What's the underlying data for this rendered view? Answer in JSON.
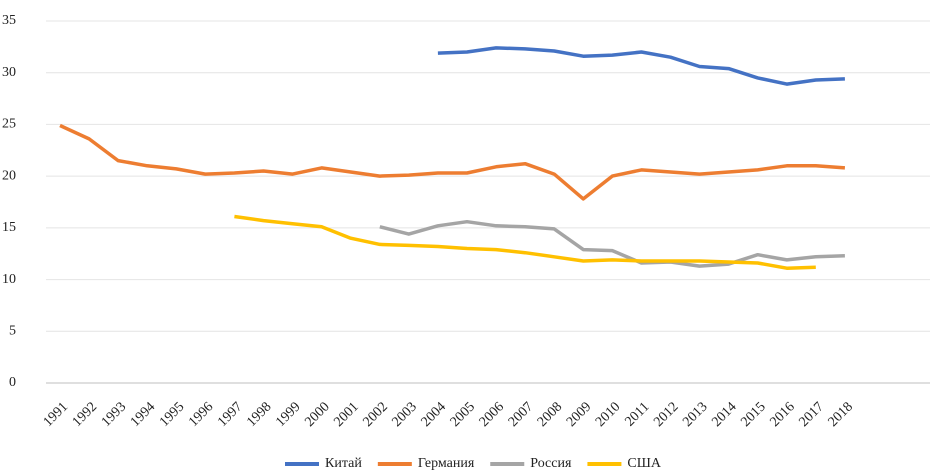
{
  "chart_data": {
    "type": "line",
    "categories": [
      "1991",
      "1992",
      "1993",
      "1994",
      "1995",
      "1996",
      "1997",
      "1998",
      "1999",
      "2000",
      "2001",
      "2002",
      "2003",
      "2004",
      "2005",
      "2006",
      "2007",
      "2008",
      "2009",
      "2010",
      "2011",
      "2012",
      "2013",
      "2014",
      "2015",
      "2016",
      "2017",
      "2018"
    ],
    "series": [
      {
        "name": "Китай",
        "color": "#4472c4",
        "values": [
          null,
          null,
          null,
          null,
          null,
          null,
          null,
          null,
          null,
          null,
          null,
          null,
          null,
          31.9,
          32.0,
          32.4,
          32.3,
          32.1,
          31.6,
          31.7,
          32.0,
          31.5,
          30.6,
          30.4,
          29.5,
          28.9,
          29.3,
          29.4
        ]
      },
      {
        "name": "Германия",
        "color": "#ed7d31",
        "values": [
          24.9,
          23.6,
          21.5,
          21.0,
          20.7,
          20.2,
          20.3,
          20.5,
          20.2,
          20.8,
          20.4,
          20.0,
          20.1,
          20.3,
          20.3,
          20.9,
          21.2,
          20.2,
          17.8,
          20.0,
          20.6,
          20.4,
          20.2,
          20.4,
          20.6,
          21.0,
          21.0,
          20.8
        ]
      },
      {
        "name": "Россия",
        "color": "#a5a5a5",
        "values": [
          null,
          null,
          null,
          null,
          null,
          null,
          null,
          null,
          null,
          null,
          null,
          15.1,
          14.4,
          15.2,
          15.6,
          15.2,
          15.1,
          14.9,
          12.9,
          12.8,
          11.6,
          11.7,
          11.3,
          11.5,
          12.4,
          11.9,
          12.2,
          12.3
        ]
      },
      {
        "name": "США",
        "color": "#ffc000",
        "values": [
          null,
          null,
          null,
          null,
          null,
          null,
          16.1,
          15.7,
          15.4,
          15.1,
          14.0,
          13.4,
          13.3,
          13.2,
          13.0,
          12.9,
          12.6,
          12.2,
          11.8,
          11.9,
          11.8,
          11.8,
          11.8,
          11.7,
          11.6,
          11.1,
          11.2,
          null
        ]
      }
    ],
    "ylim": [
      0,
      35
    ],
    "yticks": [
      0,
      5,
      10,
      15,
      20,
      25,
      30,
      35
    ],
    "grid": true,
    "legend": "bottom"
  }
}
